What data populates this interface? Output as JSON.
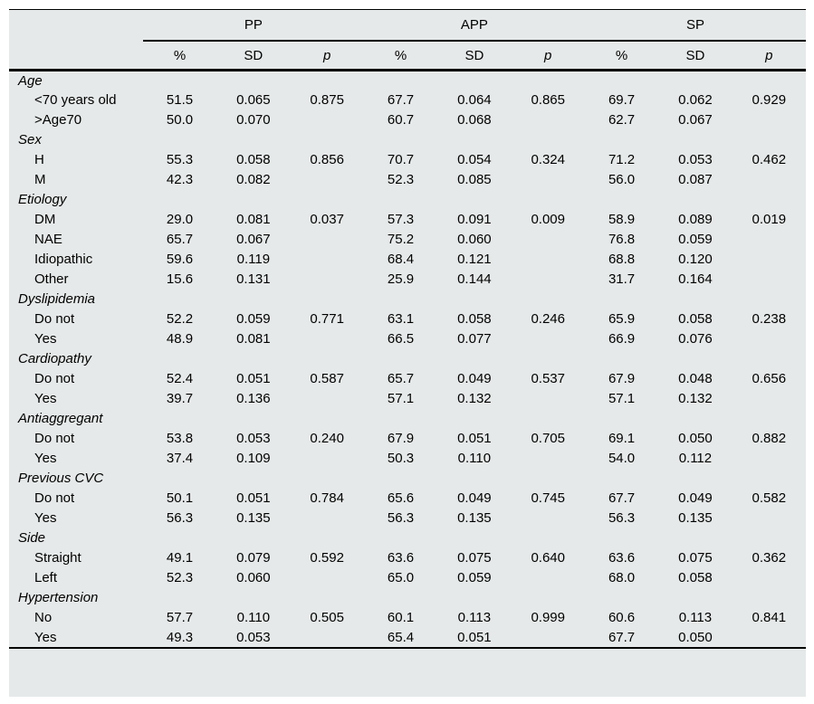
{
  "colors": {
    "background": "#e6e9e9",
    "rule": "#000000",
    "text": "#000000"
  },
  "table": {
    "group_headers": [
      {
        "label": "PP"
      },
      {
        "label": "APP"
      },
      {
        "label": "SP"
      }
    ],
    "sub_headers": [
      "%",
      "SD",
      "p"
    ],
    "sections": [
      {
        "label": "Age",
        "rows": [
          {
            "label": "<70 years old",
            "values": [
              "51.5",
              "0.065",
              "0.875",
              "67.7",
              "0.064",
              "0.865",
              "69.7",
              "0.062",
              "0.929"
            ]
          },
          {
            "label": ">Age70",
            "values": [
              "50.0",
              "0.070",
              "",
              "60.7",
              "0.068",
              "",
              "62.7",
              "0.067",
              ""
            ]
          }
        ]
      },
      {
        "label": "Sex",
        "rows": [
          {
            "label": "H",
            "values": [
              "55.3",
              "0.058",
              "0.856",
              "70.7",
              "0.054",
              "0.324",
              "71.2",
              "0.053",
              "0.462"
            ]
          },
          {
            "label": "M",
            "values": [
              "42.3",
              "0.082",
              "",
              "52.3",
              "0.085",
              "",
              "56.0",
              "0.087",
              ""
            ]
          }
        ]
      },
      {
        "label": "Etiology",
        "rows": [
          {
            "label": "DM",
            "values": [
              "29.0",
              "0.081",
              "0.037",
              "57.3",
              "0.091",
              "0.009",
              "58.9",
              "0.089",
              "0.019"
            ]
          },
          {
            "label": "NAE",
            "values": [
              "65.7",
              "0.067",
              "",
              "75.2",
              "0.060",
              "",
              "76.8",
              "0.059",
              ""
            ]
          },
          {
            "label": "Idiopathic",
            "values": [
              "59.6",
              "0.119",
              "",
              "68.4",
              "0.121",
              "",
              "68.8",
              "0.120",
              ""
            ]
          },
          {
            "label": "Other",
            "values": [
              "15.6",
              "0.131",
              "",
              "25.9",
              "0.144",
              "",
              "31.7",
              "0.164",
              ""
            ]
          }
        ]
      },
      {
        "label": "Dyslipidemia",
        "rows": [
          {
            "label": "Do not",
            "values": [
              "52.2",
              "0.059",
              "0.771",
              "63.1",
              "0.058",
              "0.246",
              "65.9",
              "0.058",
              "0.238"
            ]
          },
          {
            "label": "Yes",
            "values": [
              "48.9",
              "0.081",
              "",
              "66.5",
              "0.077",
              "",
              "66.9",
              "0.076",
              ""
            ]
          }
        ]
      },
      {
        "label": "Cardiopathy",
        "rows": [
          {
            "label": "Do not",
            "values": [
              "52.4",
              "0.051",
              "0.587",
              "65.7",
              "0.049",
              "0.537",
              "67.9",
              "0.048",
              "0.656"
            ]
          },
          {
            "label": "Yes",
            "values": [
              "39.7",
              "0.136",
              "",
              "57.1",
              "0.132",
              "",
              "57.1",
              "0.132",
              ""
            ]
          }
        ]
      },
      {
        "label": "Antiaggregant",
        "rows": [
          {
            "label": "Do not",
            "values": [
              "53.8",
              "0.053",
              "0.240",
              "67.9",
              "0.051",
              "0.705",
              "69.1",
              "0.050",
              "0.882"
            ]
          },
          {
            "label": "Yes",
            "values": [
              "37.4",
              "0.109",
              "",
              "50.3",
              "0.110",
              "",
              "54.0",
              "0.112",
              ""
            ]
          }
        ]
      },
      {
        "label": "Previous CVC",
        "rows": [
          {
            "label": "Do not",
            "values": [
              "50.1",
              "0.051",
              "0.784",
              "65.6",
              "0.049",
              "0.745",
              "67.7",
              "0.049",
              "0.582"
            ]
          },
          {
            "label": "Yes",
            "values": [
              "56.3",
              "0.135",
              "",
              "56.3",
              "0.135",
              "",
              "56.3",
              "0.135",
              ""
            ]
          }
        ]
      },
      {
        "label": "Side",
        "rows": [
          {
            "label": "Straight",
            "values": [
              "49.1",
              "0.079",
              "0.592",
              "63.6",
              "0.075",
              "0.640",
              "63.6",
              "0.075",
              "0.362"
            ]
          },
          {
            "label": "Left",
            "values": [
              "52.3",
              "0.060",
              "",
              "65.0",
              "0.059",
              "",
              "68.0",
              "0.058",
              ""
            ]
          }
        ]
      },
      {
        "label": "Hypertension",
        "rows": [
          {
            "label": "No",
            "values": [
              "57.7",
              "0.110",
              "0.505",
              "60.1",
              "0.113",
              "0.999",
              "60.6",
              "0.113",
              "0.841"
            ]
          },
          {
            "label": "Yes",
            "values": [
              "49.3",
              "0.053",
              "",
              "65.4",
              "0.051",
              "",
              "67.7",
              "0.050",
              ""
            ]
          }
        ]
      }
    ]
  }
}
